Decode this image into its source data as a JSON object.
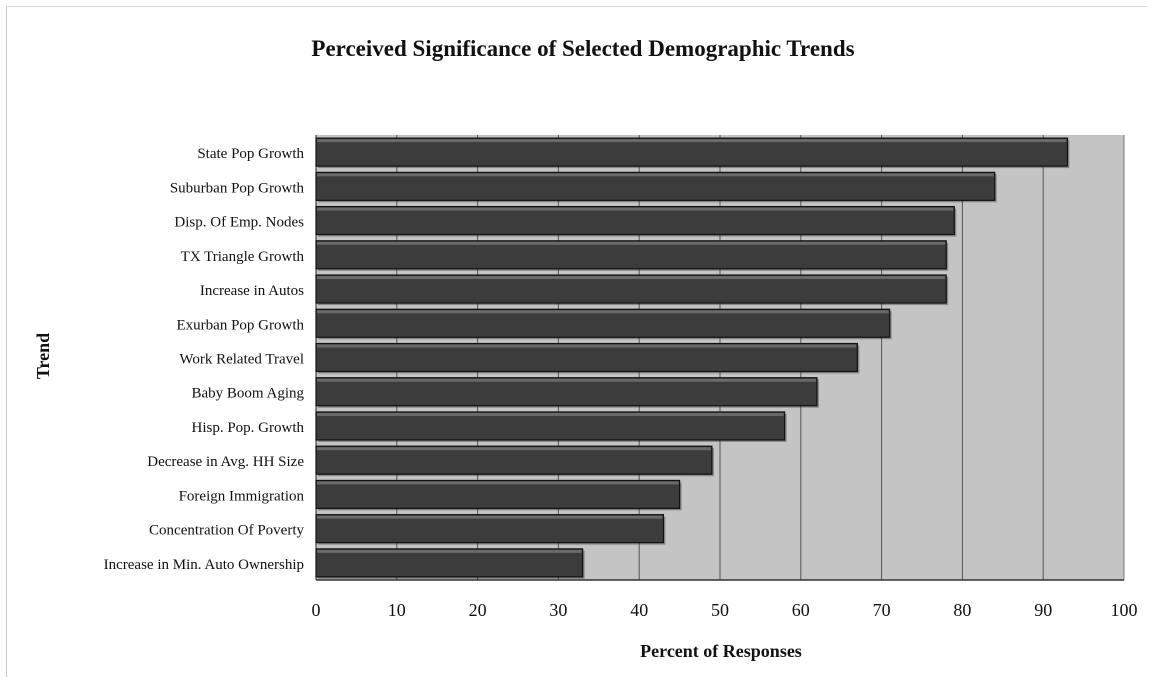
{
  "chart_data": {
    "type": "bar",
    "orientation": "horizontal",
    "title": "Perceived Significance of Selected Demographic Trends",
    "xlabel": "Percent of Responses",
    "ylabel": "Trend",
    "xlim": [
      0,
      100
    ],
    "x_ticks": [
      "0",
      "10",
      "20",
      "30",
      "40",
      "50",
      "60",
      "70",
      "80",
      "90",
      "100"
    ],
    "grid": "vertical",
    "legend": "none",
    "categories": [
      "State Pop Growth",
      "Suburban Pop Growth",
      "Disp. Of Emp. Nodes",
      "TX Triangle Growth",
      "Increase in Autos",
      "Exurban Pop Growth",
      "Work Related Travel",
      "Baby Boom Aging",
      "Hisp. Pop. Growth",
      "Decrease in Avg. HH Size",
      "Foreign Immigration",
      "Concentration Of Poverty",
      "Increase in Min. Auto Ownership"
    ],
    "values": [
      93,
      84,
      79,
      78,
      78,
      71,
      67,
      62,
      58,
      49,
      45,
      43,
      33
    ],
    "colors": {
      "bar": "#3c3c3c",
      "bar_edge": "#111111",
      "plot_background": "#c4c4c4",
      "gridline": "#555555"
    }
  }
}
